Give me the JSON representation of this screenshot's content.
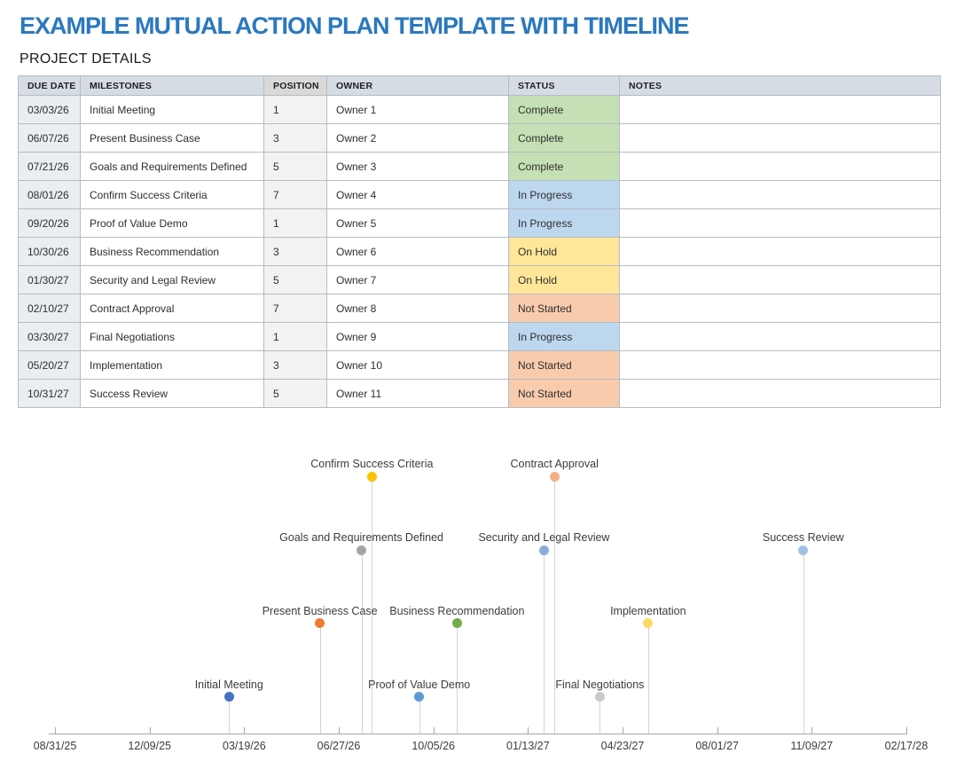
{
  "page": {
    "title": "EXAMPLE MUTUAL ACTION PLAN TEMPLATE WITH TIMELINE",
    "section_title": "PROJECT DETAILS",
    "title_color": "#2B78BE"
  },
  "table": {
    "columns": [
      "DUE DATE",
      "MILESTONES",
      "POSITION",
      "OWNER",
      "STATUS",
      "NOTES"
    ],
    "rows": [
      {
        "due_date": "03/03/26",
        "milestone": "Initial Meeting",
        "position": "1",
        "owner": "Owner 1",
        "status": "Complete",
        "notes": ""
      },
      {
        "due_date": "06/07/26",
        "milestone": "Present Business Case",
        "position": "3",
        "owner": "Owner 2",
        "status": "Complete",
        "notes": ""
      },
      {
        "due_date": "07/21/26",
        "milestone": "Goals and Requirements Defined",
        "position": "5",
        "owner": "Owner 3",
        "status": "Complete",
        "notes": ""
      },
      {
        "due_date": "08/01/26",
        "milestone": "Confirm Success Criteria",
        "position": "7",
        "owner": "Owner 4",
        "status": "In Progress",
        "notes": ""
      },
      {
        "due_date": "09/20/26",
        "milestone": "Proof of Value Demo",
        "position": "1",
        "owner": "Owner 5",
        "status": "In Progress",
        "notes": ""
      },
      {
        "due_date": "10/30/26",
        "milestone": "Business Recommendation",
        "position": "3",
        "owner": "Owner 6",
        "status": "On Hold",
        "notes": ""
      },
      {
        "due_date": "01/30/27",
        "milestone": "Security and Legal Review",
        "position": "5",
        "owner": "Owner 7",
        "status": "On Hold",
        "notes": ""
      },
      {
        "due_date": "02/10/27",
        "milestone": "Contract Approval",
        "position": "7",
        "owner": "Owner 8",
        "status": "Not Started",
        "notes": ""
      },
      {
        "due_date": "03/30/27",
        "milestone": "Final Negotiations",
        "position": "1",
        "owner": "Owner 9",
        "status": "In Progress",
        "notes": ""
      },
      {
        "due_date": "05/20/27",
        "milestone": "Implementation",
        "position": "3",
        "owner": "Owner 10",
        "status": "Not Started",
        "notes": ""
      },
      {
        "due_date": "10/31/27",
        "milestone": "Success Review",
        "position": "5",
        "owner": "Owner 11",
        "status": "Not Started",
        "notes": ""
      }
    ],
    "status_colors": {
      "Complete": "#C5E0B4",
      "In Progress": "#BDD7EE",
      "On Hold": "#FFE699",
      "Not Started": "#F8CBAD"
    }
  },
  "chart_data": {
    "type": "scatter",
    "subtype": "timeline-lollipop",
    "title": "",
    "xlabel": "",
    "ylabel": "",
    "grid": false,
    "legend": false,
    "x_axis": {
      "start": "08/31/25",
      "end": "02/17/28",
      "tick_interval_days": 100,
      "tick_labels": [
        "08/31/25",
        "12/09/25",
        "03/19/26",
        "06/27/26",
        "10/05/26",
        "01/13/27",
        "04/23/27",
        "08/01/27",
        "11/09/27",
        "02/17/28"
      ]
    },
    "y_levels": [
      1,
      3,
      5,
      7
    ],
    "points": [
      {
        "label": "Initial Meeting",
        "x": "03/03/26",
        "y": 1,
        "color": "#4472C4"
      },
      {
        "label": "Present Business Case",
        "x": "06/07/26",
        "y": 3,
        "color": "#ED7D31"
      },
      {
        "label": "Goals and Requirements Defined",
        "x": "07/21/26",
        "y": 5,
        "color": "#A5A5A5"
      },
      {
        "label": "Confirm Success Criteria",
        "x": "08/01/26",
        "y": 7,
        "color": "#FFC000"
      },
      {
        "label": "Proof of Value Demo",
        "x": "09/20/26",
        "y": 1,
        "color": "#5B9BD5"
      },
      {
        "label": "Business Recommendation",
        "x": "10/30/26",
        "y": 3,
        "color": "#70AD47"
      },
      {
        "label": "Security and Legal Review",
        "x": "01/30/27",
        "y": 5,
        "color": "#8FAADC"
      },
      {
        "label": "Contract Approval",
        "x": "02/10/27",
        "y": 7,
        "color": "#F4B183"
      },
      {
        "label": "Final Negotiations",
        "x": "03/30/27",
        "y": 1,
        "color": "#C9C9C9"
      },
      {
        "label": "Implementation",
        "x": "05/20/27",
        "y": 3,
        "color": "#FFD966"
      },
      {
        "label": "Success Review",
        "x": "10/31/27",
        "y": 5,
        "color": "#9DC3E6"
      }
    ]
  }
}
